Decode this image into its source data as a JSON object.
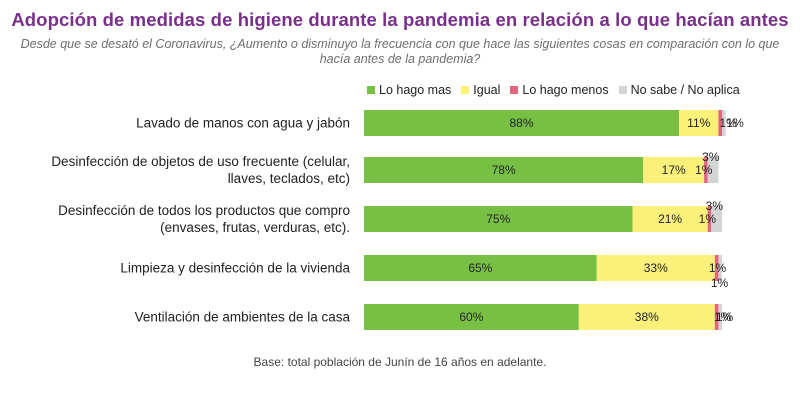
{
  "header": {
    "title": "Adopción de medidas de higiene durante la pandemia en relación a lo que hacían antes",
    "subtitle": "Desde que se desató el Coronavirus, ¿Aumento o disminuyo la frecuencia con que hace las siguientes cosas en comparación con lo que hacía antes de la pandemia?"
  },
  "footnote": "Base: total población de Junín de 16 años en adelante.",
  "chart_data": {
    "type": "bar",
    "orientation": "horizontal",
    "stacked": true,
    "unit": "%",
    "categories": [
      [
        "Lavado de manos con agua y jabón"
      ],
      [
        "Desinfección de objetos de uso frecuente (celular,",
        "llaves, teclados, etc)"
      ],
      [
        "Desinfección de todos los productos que compro",
        "(envases, frutas, verduras, etc)."
      ],
      [
        "Limpieza y desinfección de la vivienda"
      ],
      [
        "Ventilación de ambientes de la casa"
      ]
    ],
    "series": [
      {
        "name": "Lo hago mas",
        "color": "#77c043",
        "values": [
          88,
          78,
          75,
          65,
          60
        ]
      },
      {
        "name": "Igual",
        "color": "#fbf17a",
        "values": [
          11,
          17,
          21,
          33,
          38
        ]
      },
      {
        "name": "Lo hago menos",
        "color": "#e2657f",
        "values": [
          1,
          1,
          1,
          1,
          1
        ]
      },
      {
        "name": "No sabe / No aplica",
        "color": "#d4d4d4",
        "values": [
          1,
          3,
          3,
          1,
          1
        ]
      }
    ],
    "xlim": [
      0,
      100
    ],
    "legend_position": "top-right",
    "grid": false
  }
}
